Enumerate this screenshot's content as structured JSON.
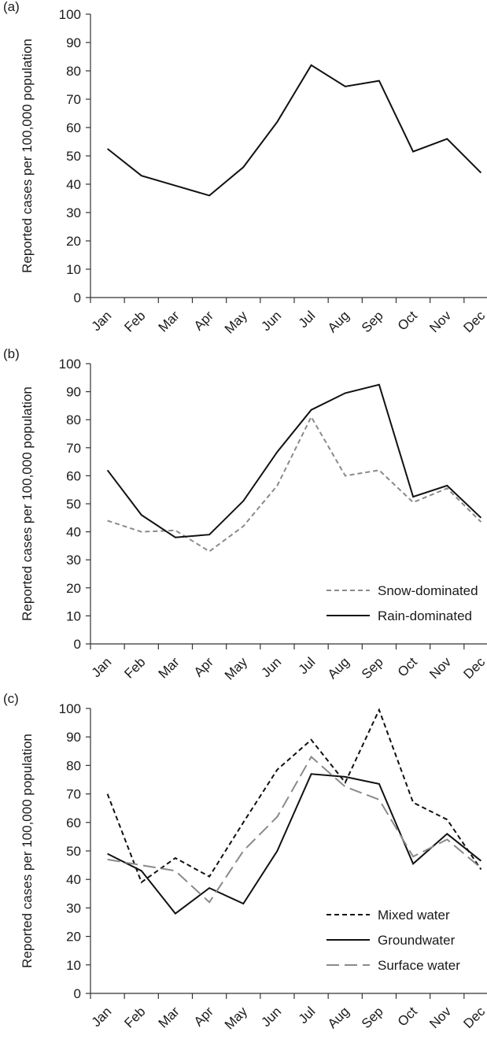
{
  "chart_data": [
    {
      "panel_label": "(a)",
      "type": "line",
      "ylabel": "Reported cases per 100,000 population",
      "xlabel": "",
      "categories": [
        "Jan",
        "Feb",
        "Mar",
        "Apr",
        "May",
        "Jun",
        "Jul",
        "Aug",
        "Sep",
        "Oct",
        "Nov",
        "Dec"
      ],
      "ylim": [
        0,
        100
      ],
      "yticks": [
        0,
        10,
        20,
        30,
        40,
        50,
        60,
        70,
        80,
        90,
        100
      ],
      "grid": false,
      "series": [
        {
          "values": [
            52.5,
            43,
            39.5,
            36,
            46,
            62,
            82,
            74.5,
            76.5,
            51.5,
            56,
            44
          ],
          "color": "#111111",
          "dash": "solid"
        }
      ]
    },
    {
      "panel_label": "(b)",
      "type": "line",
      "ylabel": "Reported cases per 100,000 population",
      "xlabel": "",
      "categories": [
        "Jan",
        "Feb",
        "Mar",
        "Apr",
        "May",
        "Jun",
        "Jul",
        "Aug",
        "Sep",
        "Oct",
        "Nov",
        "Dec"
      ],
      "ylim": [
        0,
        100
      ],
      "yticks": [
        0,
        10,
        20,
        30,
        40,
        50,
        60,
        70,
        80,
        90,
        100
      ],
      "grid": false,
      "legend_position": "bottom-right",
      "series": [
        {
          "name": "Snow-dominated",
          "values": [
            44,
            40,
            40.5,
            33,
            42,
            56.5,
            81,
            60,
            62,
            50.5,
            55.5,
            43.5
          ],
          "color": "#8a8a8a",
          "dash": "short"
        },
        {
          "name": "Rain-dominated",
          "values": [
            62,
            46,
            38,
            39,
            51,
            68.5,
            83.5,
            89.5,
            92.5,
            52.5,
            56.5,
            45
          ],
          "color": "#111111",
          "dash": "solid"
        }
      ]
    },
    {
      "panel_label": "(c)",
      "type": "line",
      "ylabel": "Reported cases per 100,000 population",
      "xlabel": "",
      "categories": [
        "Jan",
        "Feb",
        "Mar",
        "Apr",
        "May",
        "Jun",
        "Jul",
        "Aug",
        "Sep",
        "Oct",
        "Nov",
        "Dec"
      ],
      "ylim": [
        0,
        100
      ],
      "yticks": [
        0,
        10,
        20,
        30,
        40,
        50,
        60,
        70,
        80,
        90,
        100
      ],
      "grid": false,
      "legend_position": "bottom-right",
      "series": [
        {
          "name": "Mixed water",
          "values": [
            70,
            39,
            47.5,
            41,
            60,
            78.5,
            89,
            74,
            99.5,
            67,
            61,
            43.5
          ],
          "color": "#111111",
          "dash": "short"
        },
        {
          "name": "Groundwater",
          "values": [
            49,
            43,
            28,
            37,
            31.5,
            50,
            77,
            76,
            73.5,
            45.5,
            56,
            46.5
          ],
          "color": "#111111",
          "dash": "solid"
        },
        {
          "name": "Surface water",
          "values": [
            47,
            45,
            43,
            32,
            50,
            62,
            83,
            72.5,
            68,
            48,
            54,
            44
          ],
          "color": "#8a8a8a",
          "dash": "long"
        }
      ]
    }
  ]
}
